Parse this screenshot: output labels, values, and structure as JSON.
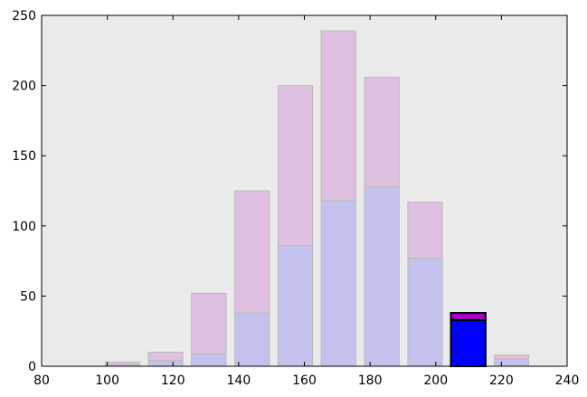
{
  "chart_data": {
    "type": "histogram",
    "bins": [
      98,
      111.2,
      124.3,
      137.5,
      150.7,
      163.8,
      177,
      190.2,
      203.3,
      216.5,
      229.6
    ],
    "series": [
      {
        "color": "#c2c2ec",
        "highlight_color": "#0000ff",
        "values": [
          1,
          4,
          9,
          38,
          86,
          118,
          128,
          77,
          33,
          5
        ]
      },
      {
        "color": "#e0c0e0",
        "highlight_color": "#aa00cc",
        "values": [
          2,
          6,
          43,
          87,
          114,
          121,
          78,
          40,
          5,
          3
        ]
      }
    ],
    "highlight_index": 8,
    "edgecolor": "#bbbbbb",
    "highlight_edgecolor": "#000000",
    "rwidth": 0.8,
    "background": "#eaeaea",
    "xlim": [
      80,
      240
    ],
    "xticks": [
      80,
      100,
      120,
      140,
      160,
      180,
      200,
      220,
      240
    ],
    "ylim": [
      0,
      250
    ],
    "yticks": [
      0,
      50,
      100,
      150,
      200,
      250
    ]
  }
}
